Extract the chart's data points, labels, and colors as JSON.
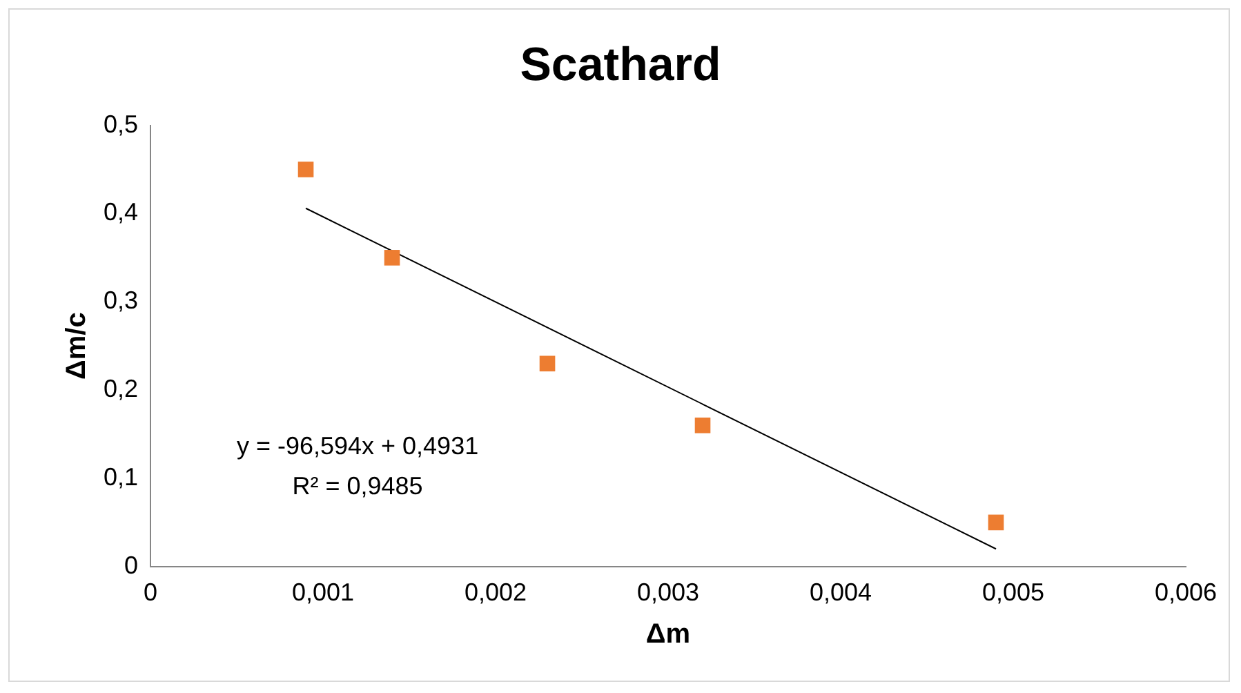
{
  "chart_data": {
    "type": "scatter",
    "title": "Scathard",
    "xlabel": "Δm",
    "ylabel": "Δm/c",
    "series": [
      {
        "type": "scatter",
        "color": "#ed7d31",
        "marker": "square",
        "x": [
          0.0009,
          0.0014,
          0.0023,
          0.0032,
          0.0049
        ],
        "values": [
          0.45,
          0.35,
          0.23,
          0.16,
          0.05
        ]
      },
      {
        "type": "line",
        "color": "#000000",
        "marker": "none",
        "x": [
          0.0009,
          0.0049
        ],
        "values": [
          0.406,
          0.02
        ]
      }
    ],
    "xlim": [
      0,
      0.006
    ],
    "ylim": [
      0,
      0.5
    ],
    "xticks": [
      0,
      {
        "value": 0.001,
        "label": "0,001"
      },
      {
        "value": 0.002,
        "label": "0,002"
      },
      {
        "value": 0.003,
        "label": "0,003"
      },
      {
        "value": 0.004,
        "label": "0,004"
      },
      {
        "value": 0.005,
        "label": "0,005"
      },
      {
        "value": 0.006,
        "label": "0,006"
      }
    ],
    "yticks": [
      0,
      {
        "value": 0.1,
        "label": "0,1"
      },
      {
        "value": 0.2,
        "label": "0,2"
      },
      {
        "value": 0.3,
        "label": "0,3"
      },
      {
        "value": 0.4,
        "label": "0,4"
      },
      {
        "value": 0.5,
        "label": "0,5"
      }
    ],
    "annotations": [
      "y = -96,594x + 0,4931",
      "R² = 0,9485"
    ]
  }
}
